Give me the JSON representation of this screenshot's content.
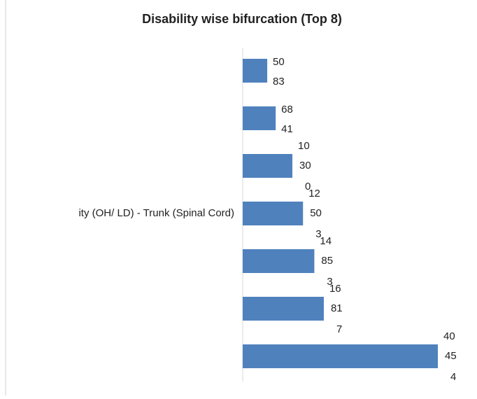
{
  "chart_data": {
    "type": "bar",
    "orientation": "horizontal",
    "title": "Disability wise bifurcation (Top 8)",
    "categories": [
      null,
      null,
      null,
      "ity (OH/ LD) - Trunk (Spinal Cord)",
      null,
      null,
      null
    ],
    "values": [
      5083,
      6841,
      10300,
      12503,
      14853,
      16817,
      40454
    ],
    "value_labels": [
      [
        "50",
        "83"
      ],
      [
        "68",
        "41"
      ],
      [
        "10",
        "30",
        "0"
      ],
      [
        "12",
        "50",
        "3"
      ],
      [
        "14",
        "85",
        "3"
      ],
      [
        "16",
        "81",
        "7"
      ],
      [
        "40",
        "45",
        "4"
      ]
    ],
    "color": "#4f81bd"
  }
}
